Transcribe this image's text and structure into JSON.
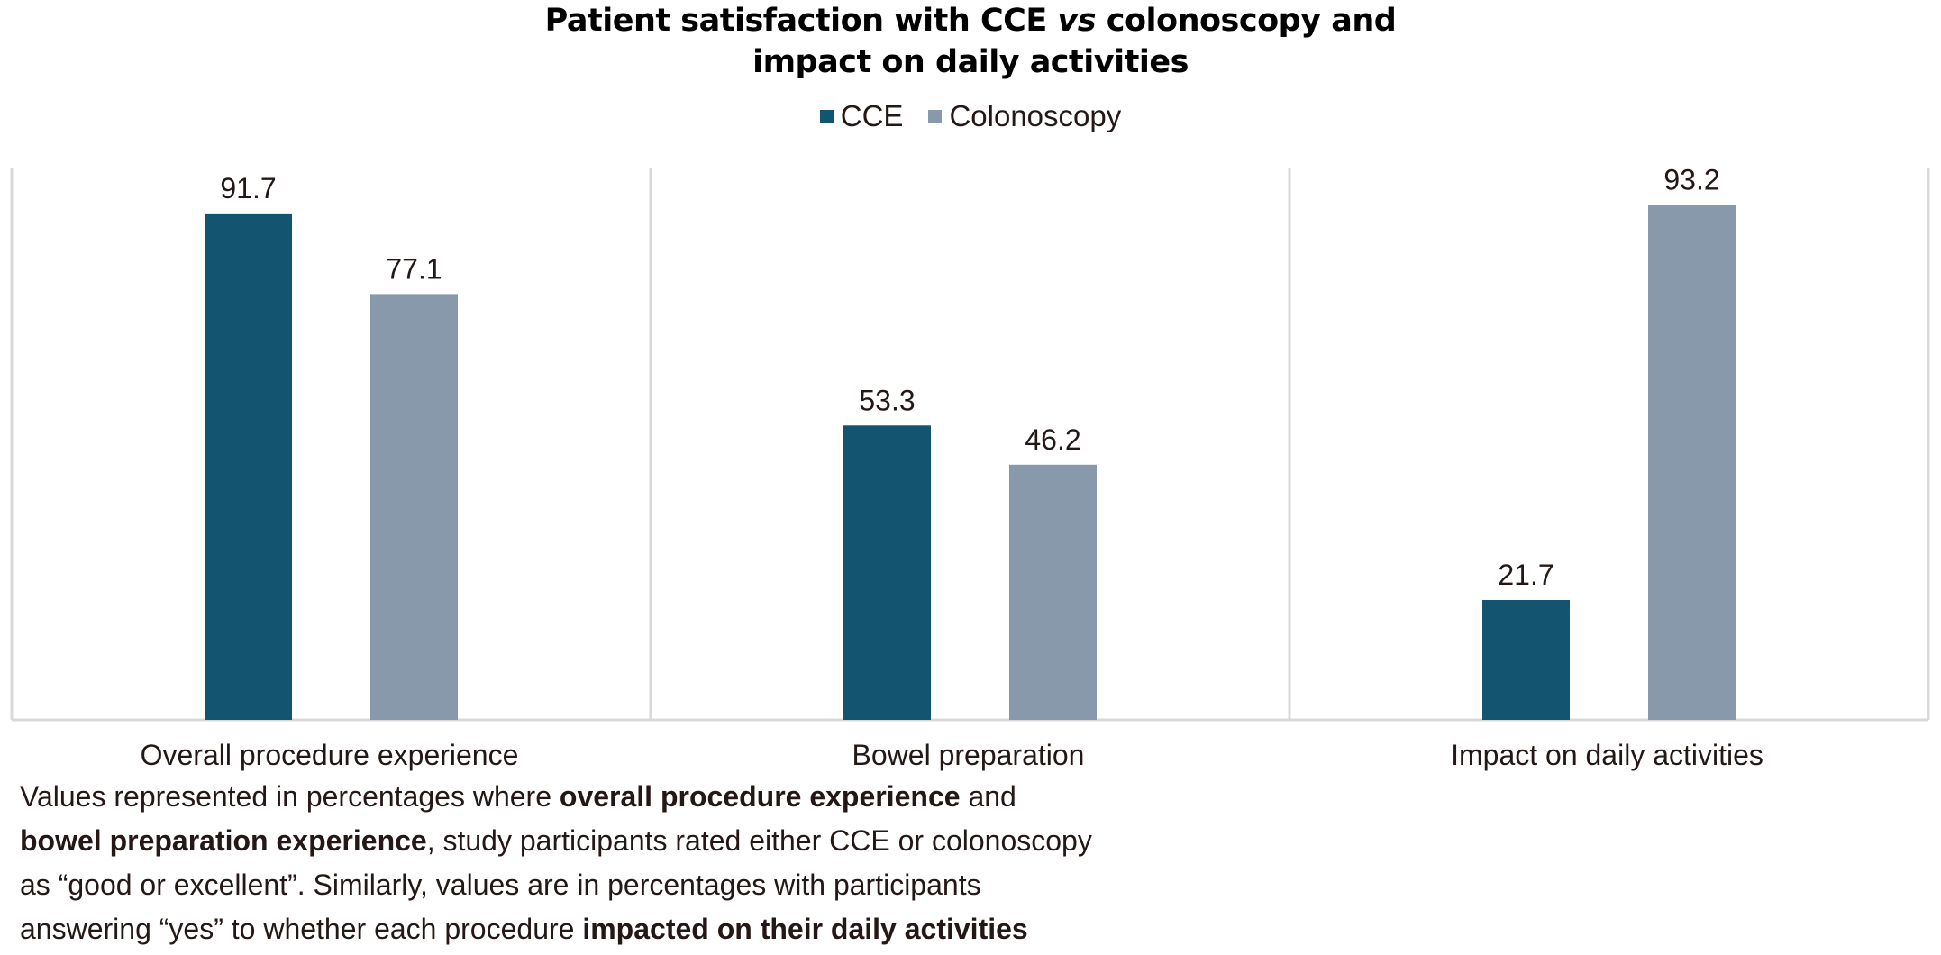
{
  "chart_data": {
    "type": "bar",
    "title": {
      "line1_pre": "Patient satisfaction with CCE ",
      "line1_italic": "vs",
      "line1_post": " colonoscopy and",
      "line2": "impact on daily activities"
    },
    "categories": [
      "Overall procedure experience",
      "Bowel preparation",
      "Impact on daily activities"
    ],
    "series": [
      {
        "name": "CCE",
        "values": [
          91.7,
          53.3,
          21.7
        ],
        "color": "#135470"
      },
      {
        "name": "Colonoscopy",
        "values": [
          77.1,
          46.2,
          93.2
        ],
        "color": "#8799aa"
      }
    ],
    "data_labels": [
      [
        "91.7",
        "53.3",
        "21.7"
      ],
      [
        "77.1",
        "46.2",
        "93.2"
      ]
    ],
    "xlabel": "",
    "ylabel": "",
    "ylim": [
      0,
      100
    ],
    "y_axis_visible": false,
    "grid": "vertical category separators",
    "legend_position": "top-center",
    "unit": "percent"
  },
  "note": {
    "line1_pre": "Values represented in percentages where ",
    "line1_bold": "overall procedure experience",
    "line1_post": " and",
    "line2_bold": "bowel preparation experience",
    "line2_post": ", study participants rated either CCE or colonoscopy",
    "line3": "as “good or excellent”. Similarly, values are in percentages with participants",
    "line4_pre": "answering “yes” to whether each procedure ",
    "line4_bold": "impacted on their daily activities"
  },
  "colors": {
    "axis": "#d9d9d9",
    "text": "#231815"
  }
}
